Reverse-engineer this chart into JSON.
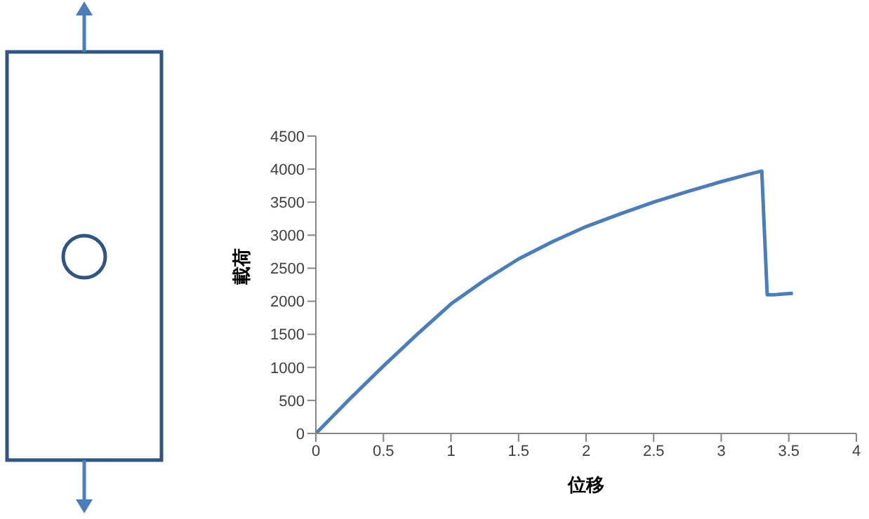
{
  "chart_data": {
    "type": "line",
    "xlabel": "位移",
    "ylabel": "載荷",
    "xlim": [
      0,
      4
    ],
    "xticks": [
      0,
      0.5,
      1,
      1.5,
      2,
      2.5,
      3,
      3.5,
      4
    ],
    "ylim": [
      0,
      4500
    ],
    "yticks": [
      0,
      500,
      1000,
      1500,
      2000,
      2500,
      3000,
      3500,
      4000,
      4500
    ],
    "grid": false,
    "marker": "none",
    "line_style": "solid",
    "series": [
      {
        "color": "#4a7ebb",
        "x": [
          0,
          0.25,
          0.5,
          0.75,
          1,
          1.25,
          1.5,
          1.75,
          2,
          2.25,
          2.5,
          2.75,
          3,
          3.2,
          3.3,
          3.34,
          3.4,
          3.45,
          3.53
        ],
        "values": [
          0,
          520,
          1020,
          1500,
          1960,
          2320,
          2640,
          2900,
          3130,
          3320,
          3500,
          3660,
          3810,
          3920,
          3970,
          2100,
          2100,
          2110,
          2120
        ]
      }
    ]
  }
}
